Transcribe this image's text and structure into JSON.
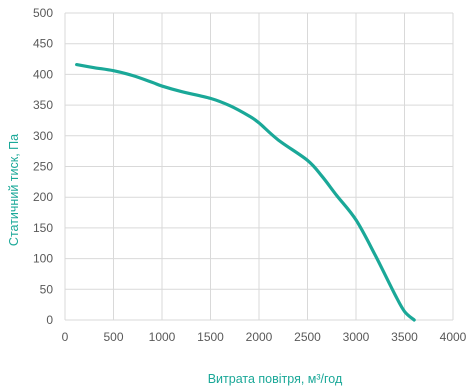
{
  "chart_data": {
    "type": "line",
    "title": "",
    "xlabel": "Витрата повітря, м³/год",
    "ylabel": "Статичний тиск, Па",
    "xlim": [
      0,
      4000
    ],
    "ylim": [
      0,
      500
    ],
    "x_ticks": [
      "0",
      "500",
      "1000",
      "1500",
      "2000",
      "2500",
      "3000",
      "3500",
      "4000"
    ],
    "y_ticks": [
      "0",
      "50",
      "100",
      "150",
      "200",
      "250",
      "300",
      "350",
      "400",
      "450",
      "500"
    ],
    "grid": true,
    "legend": "none",
    "series": [
      {
        "color": "#1aa898",
        "x": [
          120,
          300,
          500,
          700,
          900,
          1000,
          1200,
          1500,
          1700,
          1900,
          2000,
          2200,
          2500,
          2650,
          2800,
          3000,
          3200,
          3400,
          3500,
          3600
        ],
        "y": [
          416,
          411,
          406,
          398,
          387,
          381,
          372,
          361,
          349,
          332,
          321,
          293,
          260,
          234,
          203,
          163,
          105,
          42,
          14,
          0
        ]
      }
    ],
    "label_color": "#1aa898"
  }
}
